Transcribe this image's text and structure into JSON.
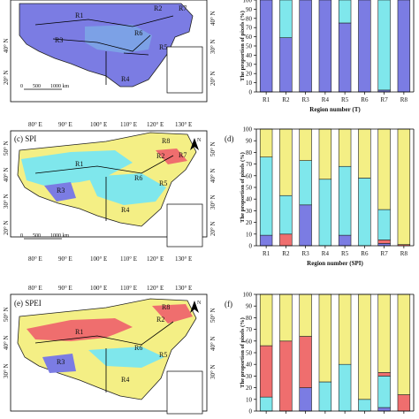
{
  "colors": {
    "purple": "#7b7ce3",
    "cyan": "#7fe7ec",
    "yellow": "#f4ef85",
    "red": "#ef6e6e",
    "gray_land": "#e0e0e0",
    "boundary": "#222222"
  },
  "map_labels": {
    "lon_ticks": [
      "80° E",
      "90° E",
      "100° E",
      "110° E",
      "120° E",
      "130° E"
    ],
    "lat_ticks": [
      "50° N",
      "40° N",
      "30° N",
      "20° N"
    ],
    "lat_ticks_top": [
      "40° N",
      "30° N",
      "20° N"
    ],
    "scale_zero": "0",
    "scale_mid": "500",
    "scale_end": "1000 km",
    "north": "N"
  },
  "maps": [
    {
      "panel": "",
      "regions": [
        "R1",
        "R2",
        "R3",
        "R4",
        "R5",
        "R6",
        "R7"
      ],
      "fill": "purple"
    },
    {
      "panel": "(c) SPI",
      "regions": [
        "R1",
        "R2",
        "R3",
        "R4",
        "R5",
        "R6",
        "R7",
        "R8"
      ],
      "fill": "yellow"
    },
    {
      "panel": "(e) SPEI",
      "regions": [
        "R1",
        "R2",
        "R3",
        "R4",
        "R5",
        "R6",
        "R8"
      ],
      "fill": "yellow"
    }
  ],
  "bar_ylabel": "The proportion of pixels (%)",
  "bar_yticks": [
    "0",
    "10",
    "20",
    "30",
    "40",
    "50",
    "60",
    "70",
    "80",
    "90",
    "100"
  ],
  "chart_data": [
    {
      "type": "bar",
      "stacked": true,
      "panel": "",
      "xlabel": "Region number (T)",
      "ylabel": "The proportion of pixels (%)",
      "ylim": [
        0,
        100
      ],
      "categories": [
        "R1",
        "R2",
        "R3",
        "R4",
        "R5",
        "R6",
        "R7",
        "R8"
      ],
      "series": [
        {
          "color": "purple",
          "values": [
            100,
            59,
            100,
            100,
            75,
            100,
            2,
            100
          ]
        },
        {
          "color": "cyan",
          "values": [
            0,
            41,
            0,
            0,
            25,
            0,
            98,
            0
          ]
        }
      ]
    },
    {
      "type": "bar",
      "stacked": true,
      "panel": "(d)",
      "xlabel": "Region number  (SPI)",
      "ylabel": "The proportion of pixels (%)",
      "ylim": [
        0,
        100
      ],
      "categories": [
        "R1",
        "R2",
        "R3",
        "R4",
        "R5",
        "R6",
        "R7",
        "R8"
      ],
      "series": [
        {
          "color": "purple",
          "values": [
            9,
            0,
            35,
            0,
            9,
            0,
            2,
            0
          ]
        },
        {
          "color": "red",
          "values": [
            0,
            10,
            0,
            0,
            0,
            0,
            3,
            1
          ]
        },
        {
          "color": "cyan",
          "values": [
            67,
            33,
            38,
            57,
            59,
            58,
            26,
            0
          ]
        },
        {
          "color": "yellow",
          "values": [
            24,
            57,
            27,
            43,
            32,
            42,
            69,
            99
          ]
        }
      ]
    },
    {
      "type": "bar",
      "stacked": true,
      "panel": "(f)",
      "xlabel": "",
      "ylabel": "The proportion of pixels (%)",
      "ylim": [
        0,
        100
      ],
      "categories": [
        "R1",
        "R2",
        "R3",
        "R4",
        "R5",
        "R6",
        "R7",
        "R8"
      ],
      "series": [
        {
          "color": "purple",
          "values": [
            0,
            0,
            20,
            0,
            0,
            0,
            3,
            0
          ]
        },
        {
          "color": "cyan",
          "values": [
            12,
            0,
            0,
            25,
            40,
            10,
            27,
            0
          ]
        },
        {
          "color": "red",
          "values": [
            44,
            60,
            44,
            0,
            0,
            0,
            3,
            14
          ]
        },
        {
          "color": "yellow",
          "values": [
            44,
            40,
            36,
            75,
            60,
            90,
            67,
            86
          ]
        }
      ]
    }
  ]
}
